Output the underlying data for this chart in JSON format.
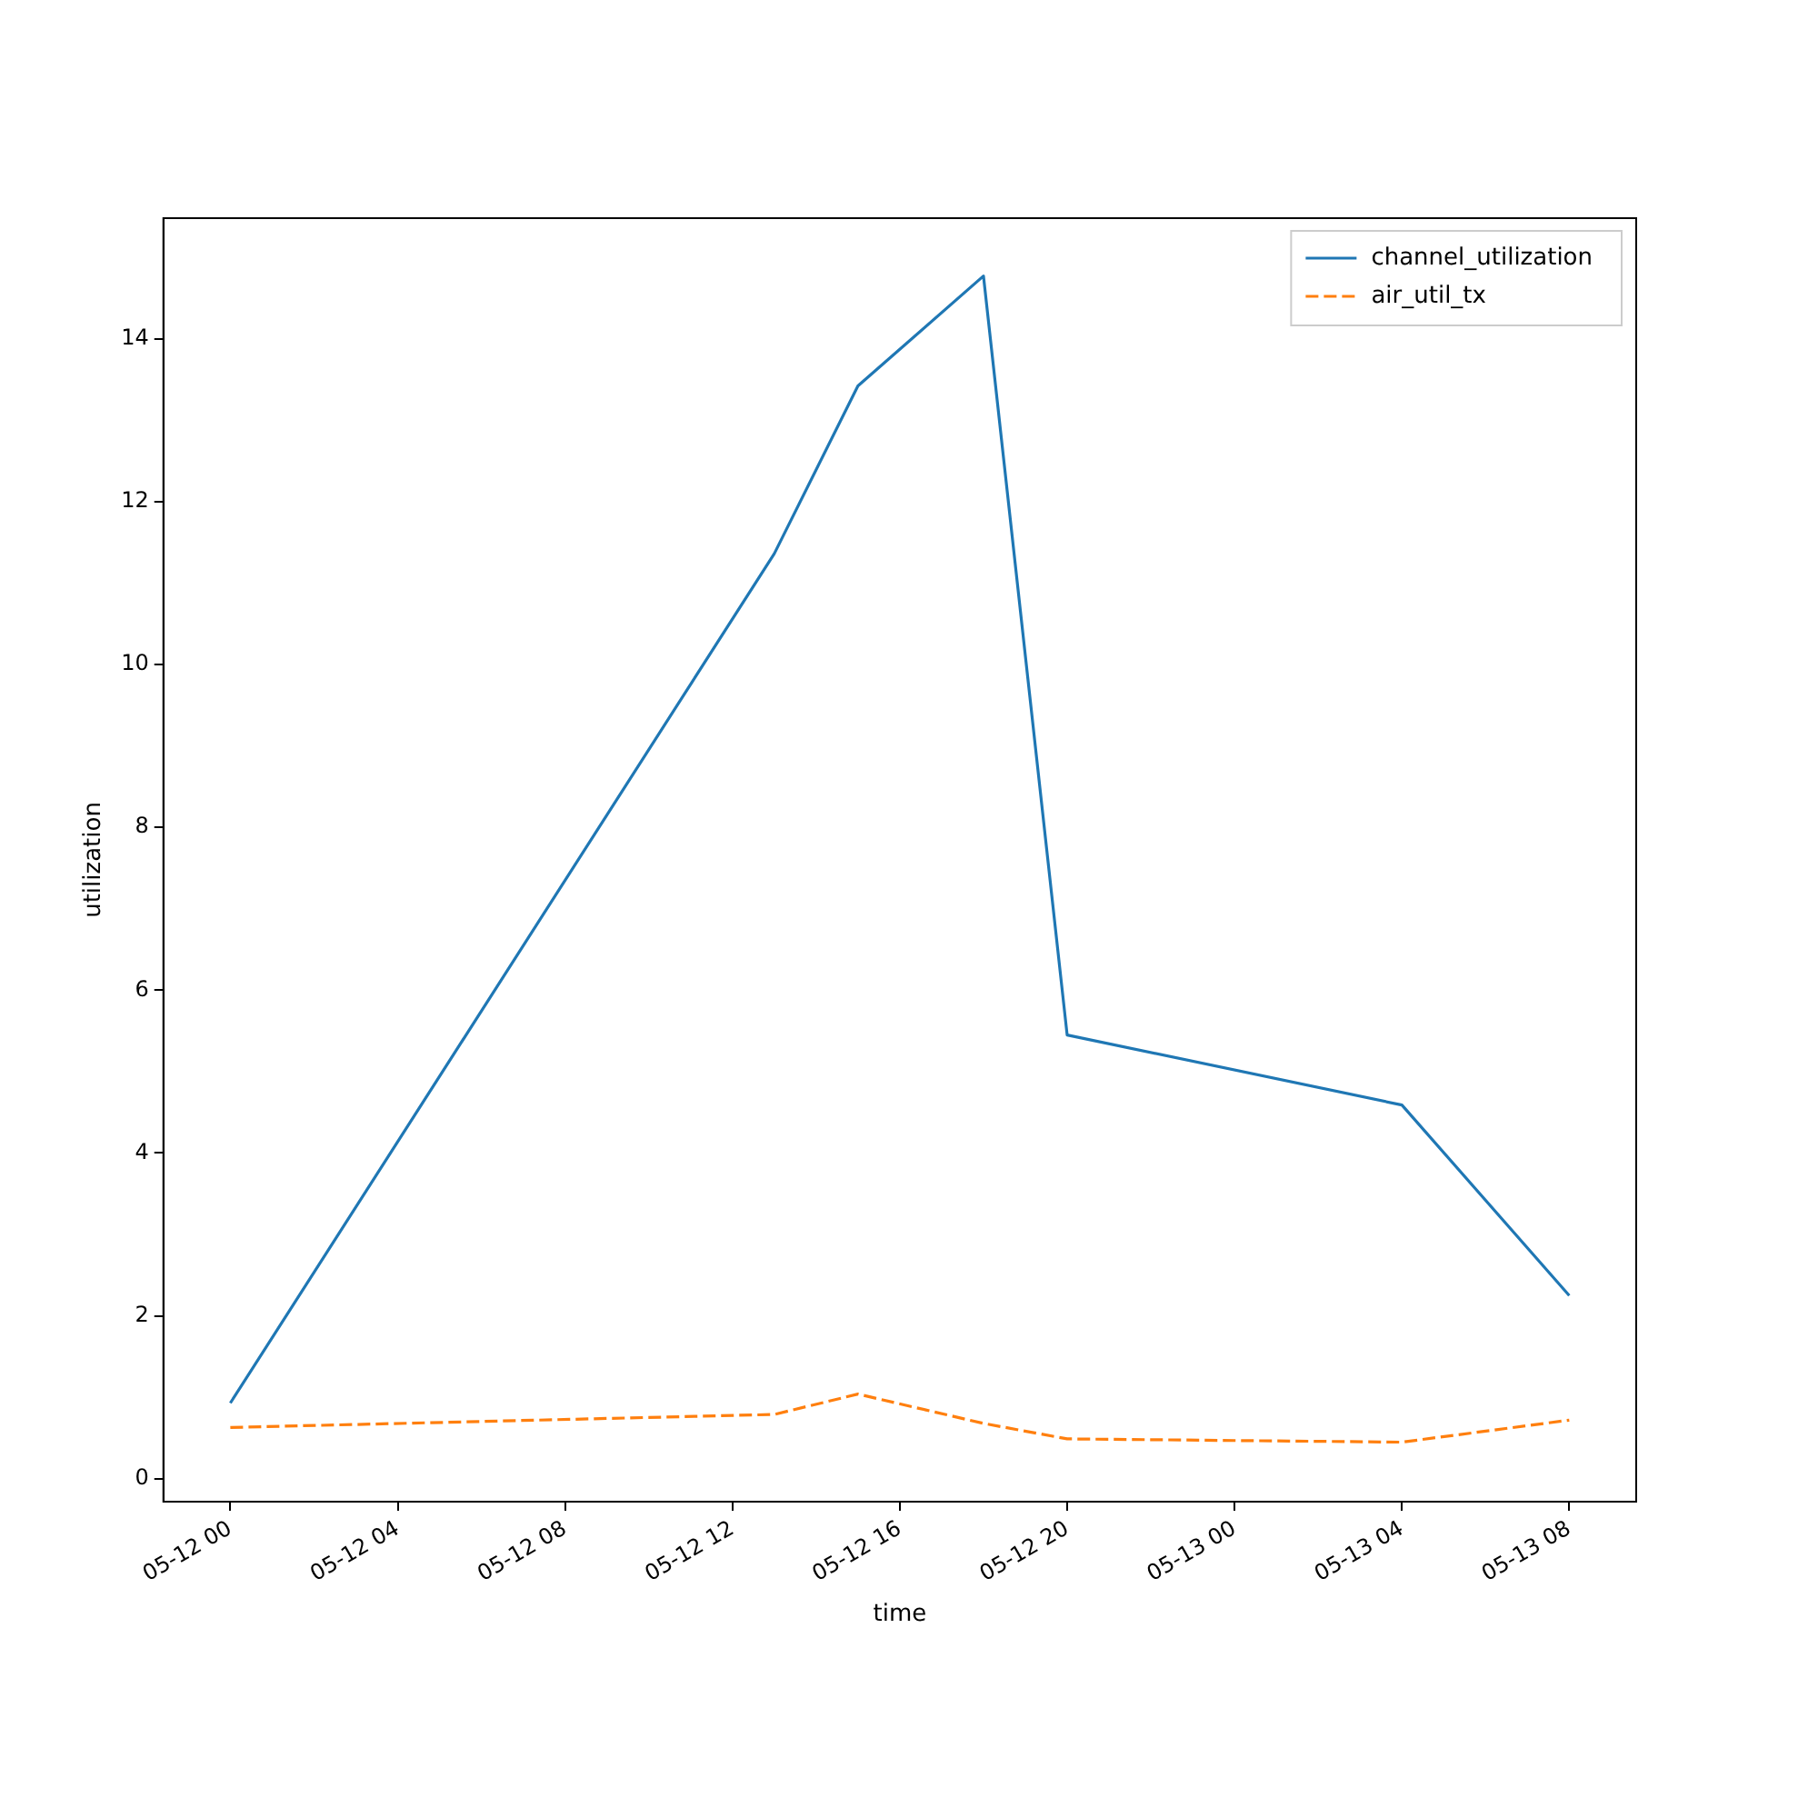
{
  "chart_data": {
    "type": "line",
    "xlabel": "time",
    "ylabel": "utilization",
    "x": [
      "--05-12T00:00",
      "--05-12T13:00",
      "--05-12T15:00",
      "--05-12T18:00",
      "--05-12T20:00",
      "--05-13T04:00",
      "--05-13T08:00"
    ],
    "series": [
      {
        "name": "channel_utilization",
        "color": "#1f77b4",
        "line_style": "solid",
        "values": [
          0.93,
          11.36,
          13.42,
          14.77,
          5.45,
          4.59,
          2.25
        ]
      },
      {
        "name": "air_util_tx",
        "color": "#ff7f0e",
        "line_style": "dashed",
        "values": [
          0.63,
          0.79,
          1.04,
          0.68,
          0.49,
          0.45,
          0.72
        ]
      }
    ],
    "xlim": [
      "--05-11T22:24",
      "--05-13T09:36"
    ],
    "ylim": [
      -0.28,
      15.48
    ],
    "xticks": [
      {
        "value": "--05-12T00:00",
        "label": "05-12 00"
      },
      {
        "value": "--05-12T04:00",
        "label": "05-12 04"
      },
      {
        "value": "--05-12T08:00",
        "label": "05-12 08"
      },
      {
        "value": "--05-12T12:00",
        "label": "05-12 12"
      },
      {
        "value": "--05-12T16:00",
        "label": "05-12 16"
      },
      {
        "value": "--05-12T20:00",
        "label": "05-12 20"
      },
      {
        "value": "--05-13T00:00",
        "label": "05-13 00"
      },
      {
        "value": "--05-13T04:00",
        "label": "05-13 04"
      },
      {
        "value": "--05-13T08:00",
        "label": "05-13 08"
      }
    ],
    "yticks": [
      0,
      2,
      4,
      6,
      8,
      10,
      12,
      14
    ],
    "grid": false,
    "legend": "top right",
    "marker": "none"
  }
}
